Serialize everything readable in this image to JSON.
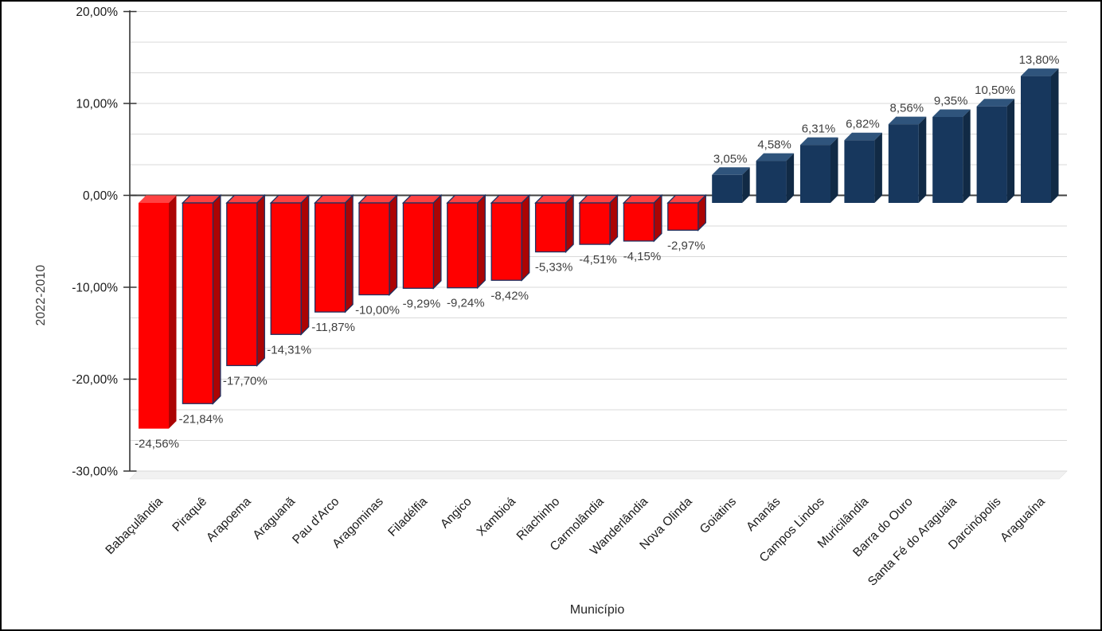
{
  "chart_data": {
    "type": "bar",
    "style": "3d-column",
    "title": "",
    "xlabel": "Município",
    "ylabel": "2022-2010",
    "ylim": [
      -30,
      20
    ],
    "y_major_tick_step_pct": 10,
    "y_minor_gridline_step_pct": 3.3333,
    "y_tick_labels": [
      "20,00%",
      "10,00%",
      "0,00%",
      "-10,00%",
      "-20,00%",
      "-30,00%"
    ],
    "grid": true,
    "legend_position": "none",
    "categories": [
      "Babaçulândia",
      "Piraquê",
      "Arapoema",
      "Araguanã",
      "Pau d'Arco",
      "Aragominas",
      "Filadélfia",
      "Angico",
      "Xambioá",
      "Riachinho",
      "Carmolândia",
      "Wanderlândia",
      "Nova Olinda",
      "Goiatins",
      "Ananás",
      "Campos Lindos",
      "Muricilândia",
      "Barra do Ouro",
      "Santa Fé do Araguaia",
      "Darcinópolis",
      "Araguaína"
    ],
    "values": [
      -24.56,
      -21.84,
      -17.7,
      -14.31,
      -11.87,
      -10.0,
      -9.29,
      -9.24,
      -8.42,
      -5.33,
      -4.51,
      -4.15,
      -2.97,
      3.05,
      4.58,
      6.31,
      6.82,
      8.56,
      9.35,
      10.5,
      13.8
    ],
    "data_labels": [
      "-24,56%",
      "-21,84%",
      "-17,70%",
      "-14,31%",
      "-11,87%",
      "-10,00%",
      "-9,29%",
      "-9,24%",
      "-8,42%",
      "-5,33%",
      "-4,51%",
      "-4,15%",
      "-2,97%",
      "3,05%",
      "4,58%",
      "6,31%",
      "6,82%",
      "8,56%",
      "9,35%",
      "10,50%",
      "13,80%"
    ],
    "colors": {
      "negative_front": "#FF0000",
      "negative_top": "#FF4242",
      "negative_side": "#AB0404",
      "negative_outline": "#1F3060",
      "positive_front": "#17375D",
      "positive_top": "#2F547C",
      "positive_side": "#112A45",
      "gridline": "#D9D9D9",
      "zero_axis": "#404040",
      "axis_line": "#333333",
      "floor": "#F1F1F1",
      "label_text": "#3F3F3F"
    }
  }
}
